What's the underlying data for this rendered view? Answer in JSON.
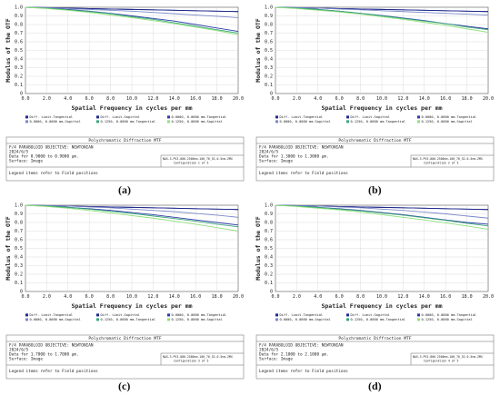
{
  "chart_data": [
    {
      "type": "line",
      "caption": "(a)",
      "xlabel": "Spatial Frequency in cycles per mm",
      "ylabel": "Modulus of the OTF",
      "xlim": [
        0,
        20
      ],
      "ylim": [
        0,
        1
      ],
      "x_ticks": [
        "0.0",
        "2.0",
        "4.0",
        "6.0",
        "8.0",
        "10.0",
        "12.0",
        "14.0",
        "16.0",
        "18.0",
        "20.0"
      ],
      "y_ticks": [
        "0",
        "0.1",
        "0.2",
        "0.3",
        "0.4",
        "0.5",
        "0.6",
        "0.7",
        "0.8",
        "0.9",
        "1.0"
      ],
      "grid": true,
      "x": [
        0,
        2,
        4,
        6,
        8,
        10,
        12,
        14,
        16,
        18,
        20
      ],
      "series": [
        {
          "name": "Diff. Limit-Tangential",
          "color": "#1f2a8a",
          "values": [
            1.0,
            0.995,
            0.99,
            0.985,
            0.98,
            0.975,
            0.97,
            0.965,
            0.96,
            0.955,
            0.95
          ]
        },
        {
          "name": "Diff. Limit-Sagittal",
          "color": "#1f2a8a",
          "values": [
            1.0,
            0.995,
            0.99,
            0.985,
            0.98,
            0.975,
            0.97,
            0.965,
            0.96,
            0.955,
            0.95
          ]
        },
        {
          "name": "0.0000, 0.0000 mm-Tangential",
          "color": "#2e3aa8",
          "values": [
            1.0,
            0.99,
            0.975,
            0.955,
            0.93,
            0.9,
            0.87,
            0.84,
            0.8,
            0.76,
            0.72
          ]
        },
        {
          "name": "0.0000, 0.0000 mm-Sagittal",
          "color": "#7b88c9",
          "values": [
            1.0,
            0.995,
            0.985,
            0.975,
            0.965,
            0.955,
            0.94,
            0.925,
            0.91,
            0.895,
            0.88
          ]
        },
        {
          "name": "0.1250, 0.0000 mm-Tangential",
          "color": "#3aa87a",
          "values": [
            1.0,
            0.99,
            0.97,
            0.95,
            0.925,
            0.89,
            0.86,
            0.82,
            0.78,
            0.74,
            0.7
          ]
        },
        {
          "name": "0.1250, 0.0000 mm-Sagittal",
          "color": "#8fe07a",
          "values": [
            1.0,
            0.985,
            0.965,
            0.94,
            0.91,
            0.88,
            0.845,
            0.81,
            0.77,
            0.73,
            0.68
          ]
        }
      ],
      "info": {
        "title": "Polychromatic Diffraction MTF",
        "line1": "F/4 PARABOLOID OBJECTIVE: NEWTONIAN",
        "line2": "2024/6/5",
        "line3": "Data for 0.9000 to 0.9000 µm.",
        "line4": "Surface: Image",
        "line5": "Legend items refer to Field positions",
        "file": "NAS-3-PV3-800-2500nm-100_70_52-0.5nm.ZMX",
        "config": "Configuration 1 of 5"
      }
    },
    {
      "type": "line",
      "caption": "(b)",
      "xlabel": "Spatial Frequency in cycles per mm",
      "ylabel": "Modulus of the OTF",
      "xlim": [
        0,
        20
      ],
      "ylim": [
        0,
        1
      ],
      "x_ticks": [
        "0.0",
        "2.0",
        "4.0",
        "6.0",
        "8.0",
        "10.0",
        "12.0",
        "14.0",
        "16.0",
        "18.0",
        "20.0"
      ],
      "y_ticks": [
        "0",
        "0.1",
        "0.2",
        "0.3",
        "0.4",
        "0.5",
        "0.6",
        "0.7",
        "0.8",
        "0.9",
        "1.0"
      ],
      "grid": true,
      "x": [
        0,
        2,
        4,
        6,
        8,
        10,
        12,
        14,
        16,
        18,
        20
      ],
      "series": [
        {
          "name": "Diff. Limit-Tangential",
          "color": "#1f2a8a",
          "values": [
            1.0,
            0.995,
            0.99,
            0.985,
            0.98,
            0.975,
            0.97,
            0.965,
            0.96,
            0.955,
            0.95
          ]
        },
        {
          "name": "Diff. Limit-Sagittal",
          "color": "#1f2a8a",
          "values": [
            1.0,
            0.995,
            0.99,
            0.985,
            0.98,
            0.975,
            0.97,
            0.965,
            0.96,
            0.955,
            0.95
          ]
        },
        {
          "name": "0.0000, 0.0000 mm-Tangential",
          "color": "#2e3aa8",
          "values": [
            1.0,
            0.99,
            0.975,
            0.955,
            0.93,
            0.905,
            0.875,
            0.845,
            0.81,
            0.78,
            0.75
          ]
        },
        {
          "name": "0.0000, 0.0000 mm-Sagittal",
          "color": "#7b88c9",
          "values": [
            1.0,
            0.995,
            0.99,
            0.98,
            0.97,
            0.96,
            0.95,
            0.94,
            0.93,
            0.92,
            0.91
          ]
        },
        {
          "name": "0.1250, 0.0000 mm-Tangential",
          "color": "#3aa87a",
          "values": [
            1.0,
            0.99,
            0.975,
            0.955,
            0.93,
            0.9,
            0.87,
            0.84,
            0.81,
            0.77,
            0.74
          ]
        },
        {
          "name": "0.1250, 0.0000 mm-Sagittal",
          "color": "#8fe07a",
          "values": [
            1.0,
            0.985,
            0.965,
            0.945,
            0.92,
            0.89,
            0.86,
            0.825,
            0.79,
            0.75,
            0.71
          ]
        }
      ],
      "info": {
        "title": "Polychromatic Diffraction MTF",
        "line1": "F/4 PARABOLOID OBJECTIVE: NEWTONIAN",
        "line2": "2024/6/5",
        "line3": "Data for 1.3000 to 1.3000 µm.",
        "line4": "Surface: Image",
        "line5": "Legend items refer to Field positions",
        "file": "NAS-3-PV3-800-2500nm-100_70_52-0.5nm.ZMX",
        "config": "Configuration 2 of 5"
      }
    },
    {
      "type": "line",
      "caption": "(c)",
      "xlabel": "Spatial Frequency in cycles per mm",
      "ylabel": "Modulus of the OTF",
      "xlim": [
        0,
        20
      ],
      "ylim": [
        0,
        1
      ],
      "x_ticks": [
        "0.0",
        "2.0",
        "4.0",
        "6.0",
        "8.0",
        "10.0",
        "12.0",
        "14.0",
        "16.0",
        "18.0",
        "20.0"
      ],
      "y_ticks": [
        "0",
        "0.1",
        "0.2",
        "0.3",
        "0.4",
        "0.5",
        "0.6",
        "0.7",
        "0.8",
        "0.9",
        "1.0"
      ],
      "grid": true,
      "x": [
        0,
        2,
        4,
        6,
        8,
        10,
        12,
        14,
        16,
        18,
        20
      ],
      "series": [
        {
          "name": "Diff. Limit-Tangential",
          "color": "#1f2a8a",
          "values": [
            1.0,
            0.995,
            0.99,
            0.985,
            0.98,
            0.975,
            0.97,
            0.965,
            0.96,
            0.955,
            0.95
          ]
        },
        {
          "name": "Diff. Limit-Sagittal",
          "color": "#1f2a8a",
          "values": [
            1.0,
            0.995,
            0.99,
            0.985,
            0.98,
            0.975,
            0.97,
            0.965,
            0.96,
            0.955,
            0.95
          ]
        },
        {
          "name": "0.0000, 0.0000 mm-Tangential",
          "color": "#2e3aa8",
          "values": [
            1.0,
            0.99,
            0.975,
            0.96,
            0.94,
            0.915,
            0.89,
            0.86,
            0.83,
            0.8,
            0.77
          ]
        },
        {
          "name": "0.0000, 0.0000 mm-Sagittal",
          "color": "#7b88c9",
          "values": [
            1.0,
            0.995,
            0.99,
            0.98,
            0.97,
            0.955,
            0.94,
            0.925,
            0.905,
            0.885,
            0.86
          ]
        },
        {
          "name": "0.1250, 0.0000 mm-Tangential",
          "color": "#3aa87a",
          "values": [
            1.0,
            0.99,
            0.975,
            0.955,
            0.93,
            0.905,
            0.875,
            0.845,
            0.815,
            0.78,
            0.75
          ]
        },
        {
          "name": "0.1250, 0.0000 mm-Sagittal",
          "color": "#8fe07a",
          "values": [
            1.0,
            0.985,
            0.965,
            0.94,
            0.91,
            0.88,
            0.85,
            0.815,
            0.78,
            0.74,
            0.7
          ]
        }
      ],
      "info": {
        "title": "Polychromatic Diffraction MTF",
        "line1": "F/4 PARABOLOID OBJECTIVE: NEWTONIAN",
        "line2": "2024/6/5",
        "line3": "Data for 1.7000 to 1.7000 µm.",
        "line4": "Surface: Image",
        "line5": "Legend items refer to Field positions",
        "file": "NAS-3-PV3-800-2500nm-100_70_52-0.5nm.ZMX",
        "config": "Configuration 3 of 5"
      }
    },
    {
      "type": "line",
      "caption": "(d)",
      "xlabel": "Spatial Frequency in cycles per mm",
      "ylabel": "Modulus of the OTF",
      "xlim": [
        0,
        20
      ],
      "ylim": [
        0,
        1
      ],
      "x_ticks": [
        "0.0",
        "2.0",
        "4.0",
        "6.0",
        "8.0",
        "10.0",
        "12.0",
        "14.0",
        "16.0",
        "18.0",
        "20.0"
      ],
      "y_ticks": [
        "0",
        "0.1",
        "0.2",
        "0.3",
        "0.4",
        "0.5",
        "0.6",
        "0.7",
        "0.8",
        "0.9",
        "1.0"
      ],
      "grid": true,
      "x": [
        0,
        2,
        4,
        6,
        8,
        10,
        12,
        14,
        16,
        18,
        20
      ],
      "series": [
        {
          "name": "Diff. Limit-Tangential",
          "color": "#1f2a8a",
          "values": [
            1.0,
            0.995,
            0.99,
            0.985,
            0.98,
            0.975,
            0.97,
            0.965,
            0.96,
            0.955,
            0.95
          ]
        },
        {
          "name": "Diff. Limit-Sagittal",
          "color": "#1f2a8a",
          "values": [
            1.0,
            0.995,
            0.99,
            0.985,
            0.98,
            0.975,
            0.97,
            0.965,
            0.96,
            0.955,
            0.95
          ]
        },
        {
          "name": "0.0000, 0.0000 mm-Tangential",
          "color": "#2e3aa8",
          "values": [
            1.0,
            0.99,
            0.975,
            0.96,
            0.94,
            0.915,
            0.89,
            0.86,
            0.83,
            0.8,
            0.78
          ]
        },
        {
          "name": "0.0000, 0.0000 mm-Sagittal",
          "color": "#7b88c9",
          "values": [
            1.0,
            0.995,
            0.99,
            0.98,
            0.97,
            0.955,
            0.94,
            0.92,
            0.9,
            0.875,
            0.85
          ]
        },
        {
          "name": "0.1250, 0.0000 mm-Tangential",
          "color": "#3aa87a",
          "values": [
            1.0,
            0.99,
            0.975,
            0.955,
            0.935,
            0.91,
            0.885,
            0.855,
            0.825,
            0.79,
            0.76
          ]
        },
        {
          "name": "0.1250, 0.0000 mm-Sagittal",
          "color": "#8fe07a",
          "values": [
            1.0,
            0.985,
            0.965,
            0.945,
            0.92,
            0.89,
            0.86,
            0.83,
            0.795,
            0.76,
            0.72
          ]
        }
      ],
      "info": {
        "title": "Polychromatic Diffraction MTF",
        "line1": "F/4 PARABOLOID OBJECTIVE: NEWTONIAN",
        "line2": "2024/6/5",
        "line3": "Data for 2.1000 to 2.1000 µm.",
        "line4": "Surface: Image",
        "line5": "Legend items refer to Field positions",
        "file": "NAS-3-PV3-800-2500nm-100_70_52-0.5nm.ZMX",
        "config": "Configuration 4 of 5"
      }
    }
  ]
}
